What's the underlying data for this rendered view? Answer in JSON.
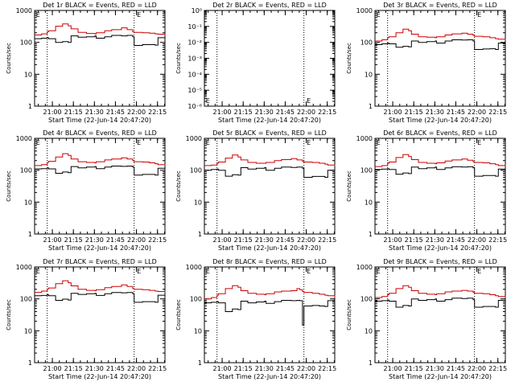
{
  "chart_data": [
    {
      "type": "line",
      "title": "Det 1r BLACK = Events, RED = LLD",
      "xlabel": "Start Time (22-Jun-14 20:47:20)",
      "ylabel": "Counts/sec",
      "y_scale": "log",
      "ylim": [
        1,
        1000
      ],
      "y_ticks": [
        1,
        10,
        100,
        1000
      ],
      "y_tick_labels": [
        "1",
        "10",
        "100",
        "1000"
      ],
      "x_ticks": [
        "21:00",
        "21:15",
        "21:30",
        "21:45",
        "22:00",
        "22:15"
      ],
      "x_tick_minutes": [
        12.67,
        27.67,
        42.67,
        57.67,
        72.67,
        87.67
      ],
      "xlim_minutes": [
        0,
        93
      ],
      "vlines_minutes": [
        9,
        71
      ],
      "markers": [
        {
          "label": "E",
          "x_minutes": 1
        },
        {
          "label": "E",
          "x_minutes": 73
        }
      ],
      "x_minutes": [
        0,
        5,
        9,
        10,
        15,
        20,
        24,
        26,
        31,
        37,
        43,
        44,
        50,
        55,
        62,
        66,
        70,
        71,
        77,
        82,
        86,
        88,
        93
      ],
      "series": [
        {
          "color": "#cc0000",
          "values": [
            170,
            185,
            215,
            230,
            320,
            380,
            330,
            265,
            205,
            190,
            185,
            200,
            230,
            250,
            285,
            250,
            215,
            205,
            200,
            195,
            185,
            180,
            170
          ]
        },
        {
          "color": "#000000",
          "values": [
            130,
            135,
            140,
            130,
            100,
            105,
            100,
            160,
            145,
            150,
            160,
            135,
            150,
            165,
            160,
            165,
            150,
            80,
            85,
            85,
            82,
            140,
            130
          ]
        }
      ]
    },
    {
      "type": "line",
      "title": "Det 2r BLACK = Events, RED = LLD",
      "xlabel": "Start Time (22-Jun-14 20:47:20)",
      "ylabel": "Counts/sec",
      "y_scale": "log",
      "ylim": [
        1e-06,
        1
      ],
      "y_ticks": [
        1e-06,
        1e-05,
        0.0001,
        0.001,
        0.01,
        0.1,
        1
      ],
      "y_tick_labels": [
        "10⁻⁶",
        "10⁻⁵",
        "10⁻⁴",
        "10⁻³",
        "10⁻²",
        "10⁻¹",
        "10⁰"
      ],
      "x_ticks": [
        "21:00",
        "21:15",
        "21:30",
        "21:45",
        "22:00",
        "22:15"
      ],
      "x_tick_minutes": [
        12.67,
        27.67,
        42.67,
        57.67,
        72.67,
        87.67
      ],
      "xlim_minutes": [
        0,
        93
      ],
      "vlines_minutes": [
        9,
        71
      ],
      "markers": [
        {
          "label": "E",
          "x_minutes": 1,
          "y_value": 1.6e-06
        },
        {
          "label": "E",
          "x_minutes": 73,
          "y_value": 1.6e-06
        }
      ],
      "x_minutes": [],
      "series": []
    },
    {
      "type": "line",
      "title": "Det 3r BLACK = Events, RED = LLD",
      "xlabel": "Start Time (22-Jun-14 20:47:20)",
      "ylabel": "Counts/sec",
      "y_scale": "log",
      "ylim": [
        1,
        1000
      ],
      "y_ticks": [
        1,
        10,
        100,
        1000
      ],
      "y_tick_labels": [
        "1",
        "10",
        "100",
        "1000"
      ],
      "x_ticks": [
        "21:00",
        "21:15",
        "21:30",
        "21:45",
        "22:00",
        "22:15"
      ],
      "x_tick_minutes": [
        12.67,
        27.67,
        42.67,
        57.67,
        72.67,
        87.67
      ],
      "xlim_minutes": [
        0,
        93
      ],
      "vlines_minutes": [
        9,
        71
      ],
      "markers": [
        {
          "label": "E",
          "x_minutes": 1
        },
        {
          "label": "E",
          "x_minutes": 73
        }
      ],
      "x_minutes": [
        0,
        5,
        9,
        10,
        15,
        20,
        24,
        26,
        31,
        37,
        43,
        44,
        50,
        55,
        62,
        66,
        70,
        71,
        77,
        82,
        86,
        88,
        93
      ],
      "series": [
        {
          "color": "#cc0000",
          "values": [
            110,
            120,
            140,
            150,
            200,
            260,
            230,
            180,
            150,
            145,
            140,
            150,
            170,
            185,
            195,
            180,
            165,
            155,
            150,
            140,
            130,
            125,
            115
          ]
        },
        {
          "color": "#000000",
          "values": [
            85,
            90,
            95,
            90,
            70,
            75,
            72,
            110,
            100,
            105,
            110,
            95,
            110,
            120,
            118,
            120,
            110,
            60,
            62,
            63,
            60,
            95,
            90
          ]
        }
      ]
    },
    {
      "type": "line",
      "title": "Det 4r BLACK = Events, RED = LLD",
      "xlabel": "Start Time (22-Jun-14 20:47:20)",
      "ylabel": "Counts/sec",
      "y_scale": "log",
      "ylim": [
        1,
        1000
      ],
      "y_ticks": [
        1,
        10,
        100,
        1000
      ],
      "y_tick_labels": [
        "1",
        "10",
        "100",
        "1000"
      ],
      "x_ticks": [
        "21:00",
        "21:15",
        "21:30",
        "21:45",
        "22:00",
        "22:15"
      ],
      "x_tick_minutes": [
        12.67,
        27.67,
        42.67,
        57.67,
        72.67,
        87.67
      ],
      "xlim_minutes": [
        0,
        93
      ],
      "vlines_minutes": [
        9,
        71
      ],
      "markers": [
        {
          "label": "E",
          "x_minutes": 1
        },
        {
          "label": "E",
          "x_minutes": 73
        }
      ],
      "x_minutes": [
        0,
        5,
        9,
        10,
        15,
        20,
        24,
        26,
        31,
        37,
        43,
        44,
        50,
        55,
        62,
        66,
        70,
        71,
        77,
        82,
        86,
        88,
        93
      ],
      "series": [
        {
          "color": "#cc0000",
          "values": [
            140,
            150,
            175,
            190,
            260,
            330,
            290,
            225,
            185,
            175,
            170,
            185,
            210,
            225,
            245,
            225,
            200,
            185,
            180,
            170,
            160,
            150,
            140
          ]
        },
        {
          "color": "#000000",
          "values": [
            110,
            112,
            118,
            110,
            80,
            88,
            84,
            130,
            118,
            125,
            130,
            112,
            125,
            135,
            132,
            135,
            125,
            70,
            74,
            74,
            70,
            115,
            110
          ]
        }
      ]
    },
    {
      "type": "line",
      "title": "Det 5r BLACK = Events, RED = LLD",
      "xlabel": "Start Time (22-Jun-14 20:47:20)",
      "ylabel": "Counts/sec",
      "y_scale": "log",
      "ylim": [
        1,
        1000
      ],
      "y_ticks": [
        1,
        10,
        100,
        1000
      ],
      "y_tick_labels": [
        "1",
        "10",
        "100",
        "1000"
      ],
      "x_ticks": [
        "21:00",
        "21:15",
        "21:30",
        "21:45",
        "22:00",
        "22:15"
      ],
      "x_tick_minutes": [
        12.67,
        27.67,
        42.67,
        57.67,
        72.67,
        87.67
      ],
      "xlim_minutes": [
        0,
        93
      ],
      "vlines_minutes": [
        9,
        71
      ],
      "markers": [
        {
          "label": "E",
          "x_minutes": 1
        },
        {
          "label": "E",
          "x_minutes": 73
        }
      ],
      "x_minutes": [
        0,
        5,
        9,
        10,
        15,
        20,
        24,
        26,
        31,
        37,
        43,
        44,
        50,
        55,
        62,
        66,
        70,
        71,
        77,
        82,
        86,
        88,
        93
      ],
      "series": [
        {
          "color": "#cc0000",
          "values": [
            140,
            145,
            165,
            180,
            240,
            300,
            260,
            210,
            175,
            165,
            165,
            175,
            200,
            215,
            230,
            210,
            190,
            180,
            175,
            165,
            155,
            145,
            135
          ]
        },
        {
          "color": "#000000",
          "values": [
            100,
            105,
            108,
            100,
            65,
            72,
            70,
            120,
            108,
            115,
            120,
            100,
            115,
            125,
            122,
            125,
            115,
            60,
            64,
            64,
            60,
            100,
            95
          ]
        }
      ]
    },
    {
      "type": "line",
      "title": "Det 6r BLACK = Events, RED = LLD",
      "xlabel": "Start Time (22-Jun-14 20:47:20)",
      "ylabel": "Counts/sec",
      "y_scale": "log",
      "ylim": [
        1,
        1000
      ],
      "y_ticks": [
        1,
        10,
        100,
        1000
      ],
      "y_tick_labels": [
        "1",
        "10",
        "100",
        "1000"
      ],
      "x_ticks": [
        "21:00",
        "21:15",
        "21:30",
        "21:45",
        "22:00",
        "22:15"
      ],
      "x_tick_minutes": [
        12.67,
        27.67,
        42.67,
        57.67,
        72.67,
        87.67
      ],
      "xlim_minutes": [
        0,
        93
      ],
      "vlines_minutes": [
        9,
        71
      ],
      "markers": [
        {
          "label": "E",
          "x_minutes": 1
        },
        {
          "label": "E",
          "x_minutes": 73
        }
      ],
      "x_minutes": [
        0,
        5,
        9,
        10,
        15,
        20,
        24,
        26,
        31,
        37,
        43,
        44,
        50,
        55,
        62,
        66,
        70,
        71,
        77,
        82,
        86,
        88,
        93
      ],
      "series": [
        {
          "color": "#cc0000",
          "values": [
            130,
            140,
            165,
            180,
            250,
            310,
            270,
            215,
            175,
            165,
            160,
            170,
            195,
            210,
            225,
            205,
            185,
            175,
            170,
            160,
            150,
            140,
            130
          ]
        },
        {
          "color": "#000000",
          "values": [
            105,
            108,
            112,
            105,
            75,
            82,
            78,
            125,
            112,
            118,
            125,
            105,
            118,
            128,
            125,
            128,
            118,
            65,
            68,
            68,
            65,
            108,
            102
          ]
        }
      ]
    },
    {
      "type": "line",
      "title": "Det 7r BLACK = Events, RED = LLD",
      "xlabel": "Start Time (22-Jun-14 20:47:20)",
      "ylabel": "Counts/sec",
      "y_scale": "log",
      "ylim": [
        1,
        1000
      ],
      "y_ticks": [
        1,
        10,
        100,
        1000
      ],
      "y_tick_labels": [
        "1",
        "10",
        "100",
        "1000"
      ],
      "x_ticks": [
        "21:00",
        "21:15",
        "21:30",
        "21:45",
        "22:00",
        "22:15"
      ],
      "x_tick_minutes": [
        12.67,
        27.67,
        42.67,
        57.67,
        72.67,
        87.67
      ],
      "xlim_minutes": [
        0,
        93
      ],
      "vlines_minutes": [
        9,
        71
      ],
      "markers": [
        {
          "label": "E",
          "x_minutes": 1
        },
        {
          "label": "E",
          "x_minutes": 73
        }
      ],
      "x_minutes": [
        0,
        5,
        9,
        10,
        15,
        20,
        24,
        26,
        31,
        37,
        43,
        44,
        50,
        55,
        62,
        66,
        70,
        71,
        77,
        82,
        86,
        88,
        93
      ],
      "series": [
        {
          "color": "#cc0000",
          "values": [
            160,
            175,
            205,
            220,
            300,
            370,
            320,
            255,
            200,
            185,
            180,
            195,
            225,
            245,
            275,
            245,
            210,
            200,
            195,
            185,
            175,
            170,
            160
          ]
        },
        {
          "color": "#000000",
          "values": [
            125,
            128,
            135,
            125,
            90,
            98,
            92,
            150,
            138,
            145,
            150,
            128,
            145,
            158,
            155,
            158,
            145,
            78,
            82,
            82,
            78,
            130,
            125
          ]
        }
      ]
    },
    {
      "type": "line",
      "title": "Det 8r BLACK = Events, RED = LLD",
      "xlabel": "Start Time (22-Jun-14 20:47:20)",
      "ylabel": "Counts/sec",
      "y_scale": "log",
      "ylim": [
        1,
        1000
      ],
      "y_ticks": [
        1,
        10,
        100,
        1000
      ],
      "y_tick_labels": [
        "1",
        "10",
        "100",
        "1000"
      ],
      "x_ticks": [
        "21:00",
        "21:15",
        "21:30",
        "21:45",
        "22:00",
        "22:15"
      ],
      "x_tick_minutes": [
        12.67,
        27.67,
        42.67,
        57.67,
        72.67,
        87.67
      ],
      "xlim_minutes": [
        0,
        93
      ],
      "vlines_minutes": [
        9,
        71
      ],
      "markers": [
        {
          "label": "E",
          "x_minutes": 1
        },
        {
          "label": "E",
          "x_minutes": 73
        }
      ],
      "x_minutes": [
        0,
        5,
        9,
        10,
        15,
        20,
        24,
        26,
        31,
        37,
        43,
        44,
        50,
        55,
        62,
        66,
        68,
        70,
        71,
        77,
        82,
        86,
        88,
        93
      ],
      "series": [
        {
          "color": "#cc0000",
          "values": [
            100,
            110,
            130,
            145,
            210,
            260,
            230,
            180,
            150,
            140,
            135,
            145,
            165,
            175,
            180,
            210,
            195,
            170,
            160,
            150,
            140,
            130,
            125,
            110
          ]
        },
        {
          "color": "#000000",
          "values": [
            75,
            78,
            82,
            75,
            40,
            48,
            46,
            85,
            75,
            80,
            85,
            72,
            82,
            90,
            88,
            90,
            88,
            15,
            60,
            62,
            60,
            58,
            88,
            80
          ]
        }
      ]
    },
    {
      "type": "line",
      "title": "Det 9r BLACK = Events, RED = LLD",
      "xlabel": "Start Time (22-Jun-14 20:47:20)",
      "ylabel": "Counts/sec",
      "y_scale": "log",
      "ylim": [
        1,
        1000
      ],
      "y_ticks": [
        1,
        10,
        100,
        1000
      ],
      "y_tick_labels": [
        "1",
        "10",
        "100",
        "1000"
      ],
      "x_ticks": [
        "21:00",
        "21:15",
        "21:30",
        "21:45",
        "22:00",
        "22:15"
      ],
      "x_tick_minutes": [
        12.67,
        27.67,
        42.67,
        57.67,
        72.67,
        87.67
      ],
      "xlim_minutes": [
        0,
        93
      ],
      "vlines_minutes": [
        9,
        71
      ],
      "markers": [
        {
          "label": "E",
          "x_minutes": 1
        },
        {
          "label": "E",
          "x_minutes": 73
        }
      ],
      "x_minutes": [
        0,
        5,
        9,
        10,
        15,
        20,
        24,
        26,
        31,
        37,
        43,
        44,
        50,
        55,
        62,
        66,
        70,
        71,
        77,
        82,
        86,
        88,
        93
      ],
      "series": [
        {
          "color": "#cc0000",
          "values": [
            110,
            118,
            135,
            150,
            210,
            260,
            230,
            180,
            150,
            140,
            135,
            145,
            165,
            175,
            185,
            175,
            160,
            150,
            145,
            135,
            125,
            118,
            110
          ]
        },
        {
          "color": "#000000",
          "values": [
            85,
            88,
            92,
            85,
            55,
            62,
            60,
            100,
            90,
            95,
            100,
            85,
            95,
            105,
            102,
            105,
            95,
            55,
            58,
            58,
            55,
            90,
            85
          ]
        }
      ]
    }
  ]
}
